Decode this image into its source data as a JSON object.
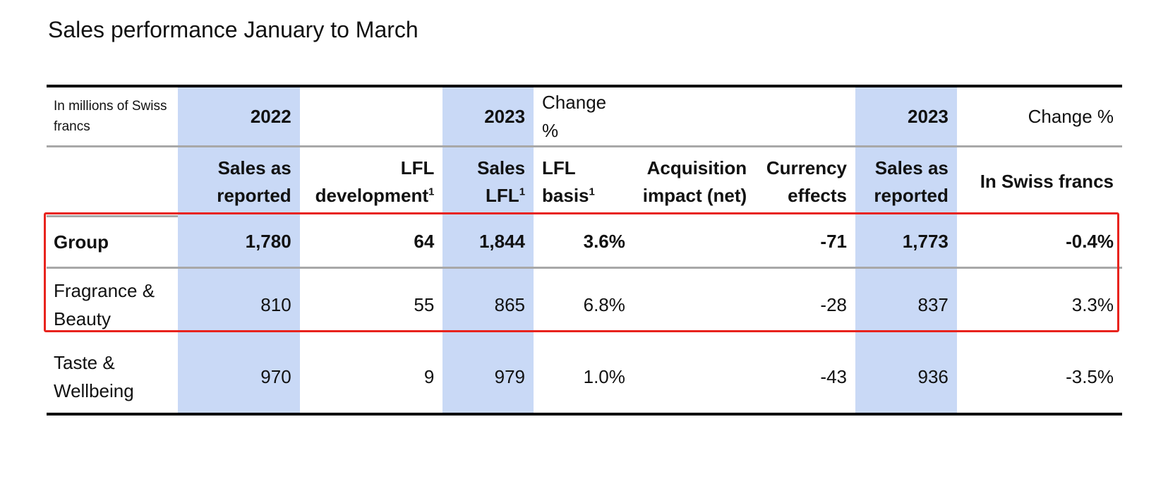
{
  "title": "Sales performance January to March",
  "header_row1": {
    "unit": "In millions of Swiss francs",
    "year_2022": "2022",
    "year_2023_a": "2023",
    "change_a": "Change %",
    "year_2023_b": "2023",
    "change_b": "Change %"
  },
  "header_row2": {
    "sales_reported_2022": "Sales as reported",
    "lfl_development": "LFL development",
    "sales_lfl": "Sales LFL",
    "lfl_basis": "LFL basis",
    "acquisition_impact": "Acquisition impact (net)",
    "currency_effects": "Currency effects",
    "sales_reported_2023": "Sales as reported",
    "in_swiss_francs": "In Swiss francs",
    "footnote_mark": "1"
  },
  "rows": [
    {
      "label": "Group",
      "sales_2022": "1,780",
      "lfl_dev": "64",
      "sales_lfl": "1,844",
      "lfl_basis": "3.6%",
      "acq": "",
      "fx": "-71",
      "sales_2023": "1,773",
      "chf": "-0.4%"
    },
    {
      "label": "Fragrance & Beauty",
      "sales_2022": "810",
      "lfl_dev": "55",
      "sales_lfl": "865",
      "lfl_basis": "6.8%",
      "acq": "",
      "fx": "-28",
      "sales_2023": "837",
      "chf": "3.3%"
    },
    {
      "label": "Taste & Wellbeing",
      "sales_2022": "970",
      "lfl_dev": "9",
      "sales_lfl": "979",
      "lfl_basis": "1.0%",
      "acq": "",
      "fx": "-43",
      "sales_2023": "936",
      "chf": "-3.5%"
    }
  ],
  "colors": {
    "highlight_column": "#c9d9f6",
    "annotation_box": "#e8231d"
  }
}
